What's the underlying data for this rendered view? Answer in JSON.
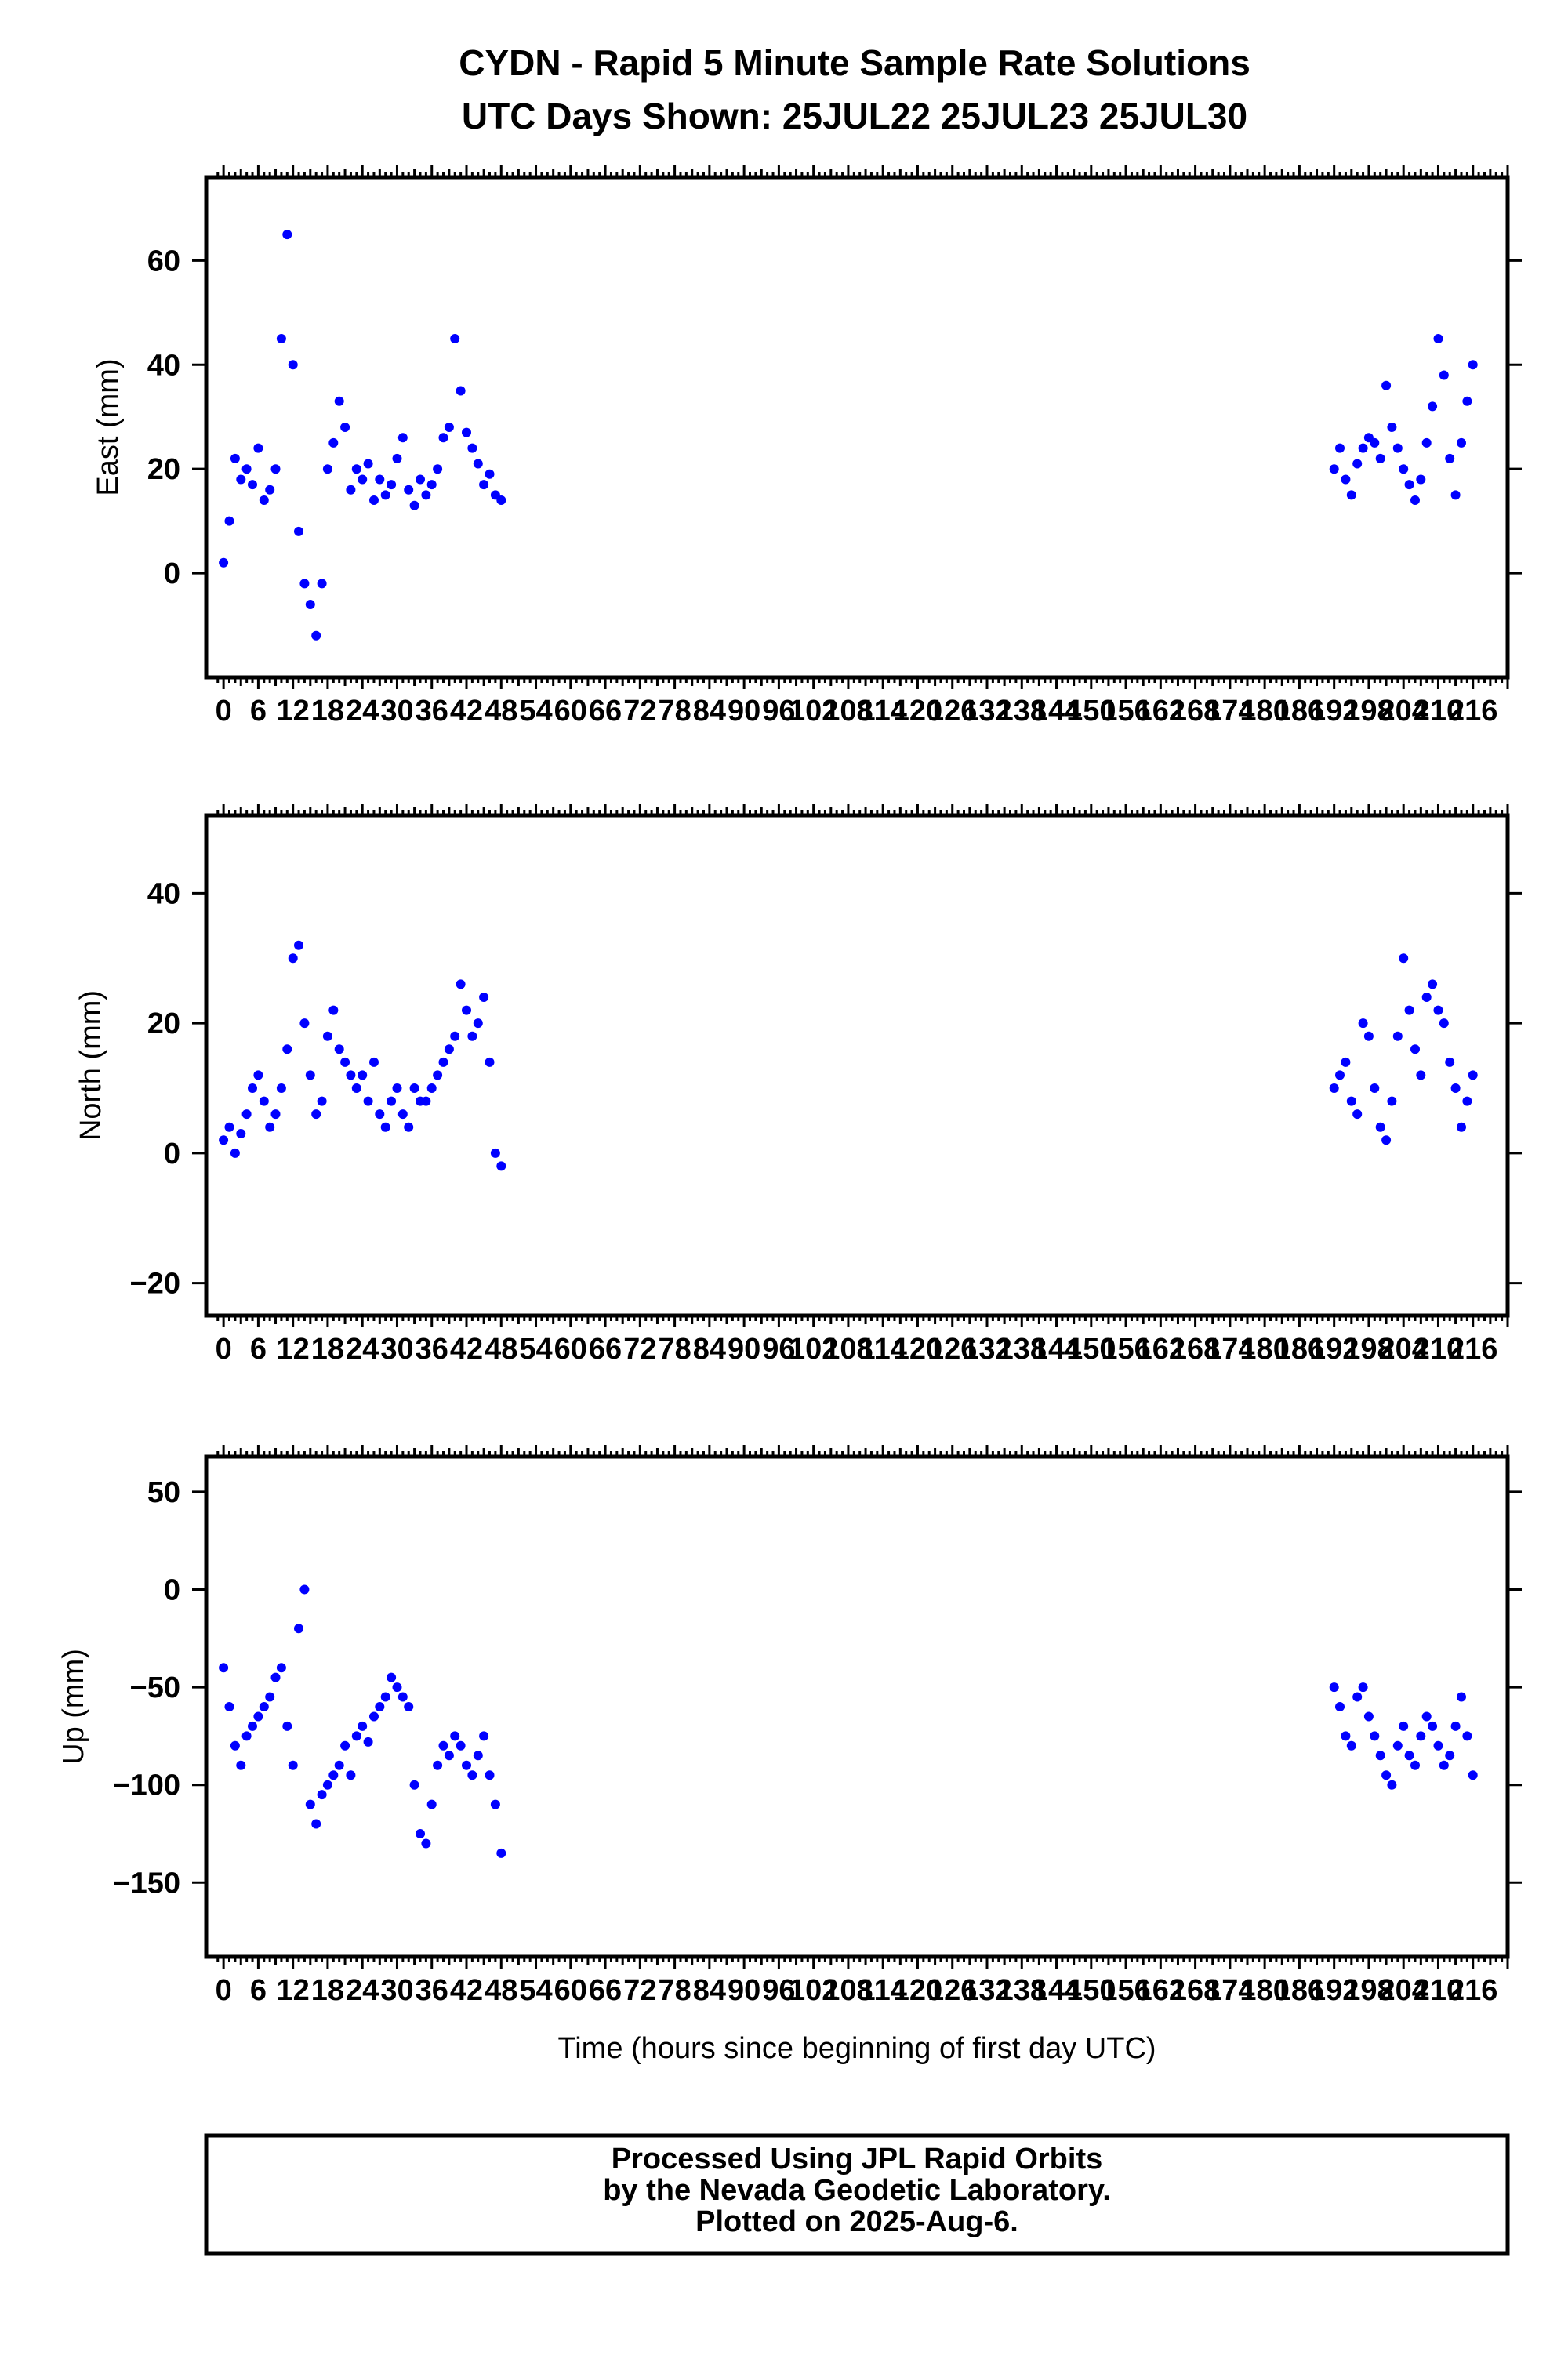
{
  "title": {
    "line1": "CYDN - Rapid 5 Minute Sample Rate Solutions",
    "line2": "UTC Days Shown:  25JUL22 25JUL23 25JUL30"
  },
  "footer": {
    "line1": "Processed Using JPL Rapid Orbits",
    "line2": "by the Nevada Geodetic Laboratory.",
    "line3": "Plotted on 2025-Aug-6."
  },
  "colors": {
    "points": "#0000ff",
    "frame": "#000000",
    "background": "#ffffff"
  },
  "chart_data": [
    {
      "type": "scatter",
      "ylabel": "East (mm)",
      "xlabel": "",
      "xlim": [
        -3,
        222
      ],
      "ylim": [
        -20,
        76
      ],
      "x_ticks": [
        0,
        6,
        12,
        18,
        24,
        30,
        36,
        42,
        48,
        54,
        60,
        66,
        72,
        78,
        84,
        90,
        96,
        102,
        108,
        114,
        120,
        126,
        132,
        138,
        144,
        150,
        156,
        162,
        168,
        174,
        180,
        186,
        192,
        198,
        204,
        210,
        216
      ],
      "x_tick_labels": [
        "0",
        "6",
        "12",
        "18",
        "24",
        "30",
        "36",
        "42",
        "48",
        "54",
        "60",
        "66",
        "72",
        "78",
        "84",
        "90",
        "96",
        "102",
        "108",
        "114",
        "120",
        "126",
        "132",
        "138",
        "144",
        "150",
        "156",
        "162",
        "168",
        "174",
        "180",
        "186",
        "192",
        "198",
        "204",
        "210",
        "216"
      ],
      "y_ticks": [
        0,
        20,
        40,
        60
      ],
      "y_tick_labels": [
        "0",
        "20",
        "40",
        "60"
      ],
      "series": [
        {
          "segments": [
            {
              "x": [
                0,
                1,
                2,
                3,
                4,
                5,
                6,
                7,
                8,
                9,
                10,
                11,
                12,
                13,
                14,
                15,
                16,
                17,
                18,
                19,
                20,
                21,
                22,
                23,
                24,
                25,
                26,
                27,
                28,
                29,
                30,
                31,
                32,
                33,
                34,
                35,
                36,
                37,
                38,
                39,
                40,
                41,
                42,
                43,
                44,
                45,
                46,
                47,
                48
              ],
              "y": [
                2,
                10,
                22,
                18,
                20,
                17,
                24,
                14,
                16,
                20,
                45,
                65,
                40,
                8,
                -2,
                -6,
                -12,
                -2,
                20,
                25,
                33,
                28,
                16,
                20,
                18,
                21,
                14,
                18,
                15,
                17,
                22,
                26,
                16,
                13,
                18,
                15,
                17,
                20,
                26,
                28,
                45,
                35,
                27,
                24,
                21,
                17,
                19,
                15,
                14
              ]
            },
            {
              "x": [
                192,
                193,
                194,
                195,
                196,
                197,
                198,
                199,
                200,
                201,
                202,
                203,
                204,
                205,
                206,
                207,
                208,
                209,
                210,
                211,
                212,
                213,
                214,
                215,
                216
              ],
              "y": [
                20,
                24,
                18,
                15,
                21,
                24,
                26,
                25,
                22,
                36,
                28,
                24,
                20,
                17,
                14,
                18,
                25,
                32,
                45,
                38,
                22,
                15,
                25,
                33,
                40
              ]
            }
          ]
        }
      ]
    },
    {
      "type": "scatter",
      "ylabel": "North (mm)",
      "xlabel": "",
      "xlim": [
        -3,
        222
      ],
      "ylim": [
        -25,
        52
      ],
      "x_ticks": [
        0,
        6,
        12,
        18,
        24,
        30,
        36,
        42,
        48,
        54,
        60,
        66,
        72,
        78,
        84,
        90,
        96,
        102,
        108,
        114,
        120,
        126,
        132,
        138,
        144,
        150,
        156,
        162,
        168,
        174,
        180,
        186,
        192,
        198,
        204,
        210,
        216
      ],
      "x_tick_labels": [
        "0",
        "6",
        "12",
        "18",
        "24",
        "30",
        "36",
        "42",
        "48",
        "54",
        "60",
        "66",
        "72",
        "78",
        "84",
        "90",
        "96",
        "102",
        "108",
        "114",
        "120",
        "126",
        "132",
        "138",
        "144",
        "150",
        "156",
        "162",
        "168",
        "174",
        "180",
        "186",
        "192",
        "198",
        "204",
        "210",
        "216"
      ],
      "y_ticks": [
        -20,
        0,
        20,
        40
      ],
      "y_tick_labels": [
        "−20",
        "0",
        "20",
        "40"
      ],
      "series": [
        {
          "segments": [
            {
              "x": [
                0,
                1,
                2,
                3,
                4,
                5,
                6,
                7,
                8,
                9,
                10,
                11,
                12,
                13,
                14,
                15,
                16,
                17,
                18,
                19,
                20,
                21,
                22,
                23,
                24,
                25,
                26,
                27,
                28,
                29,
                30,
                31,
                32,
                33,
                34,
                35,
                36,
                37,
                38,
                39,
                40,
                41,
                42,
                43,
                44,
                45,
                46,
                47,
                48
              ],
              "y": [
                2,
                4,
                0,
                3,
                6,
                10,
                12,
                8,
                4,
                6,
                10,
                16,
                30,
                32,
                20,
                12,
                6,
                8,
                18,
                22,
                16,
                14,
                12,
                10,
                12,
                8,
                14,
                6,
                4,
                8,
                10,
                6,
                4,
                10,
                8,
                8,
                10,
                12,
                14,
                16,
                18,
                26,
                22,
                18,
                20,
                24,
                14,
                0,
                -2
              ]
            },
            {
              "x": [
                192,
                193,
                194,
                195,
                196,
                197,
                198,
                199,
                200,
                201,
                202,
                203,
                204,
                205,
                206,
                207,
                208,
                209,
                210,
                211,
                212,
                213,
                214,
                215,
                216
              ],
              "y": [
                10,
                12,
                14,
                8,
                6,
                20,
                18,
                10,
                4,
                2,
                8,
                18,
                30,
                22,
                16,
                12,
                24,
                26,
                22,
                20,
                14,
                10,
                4,
                8,
                12
              ]
            }
          ]
        }
      ]
    },
    {
      "type": "scatter",
      "ylabel": "Up (mm)",
      "xlabel": "Time (hours since beginning of first day UTC)",
      "xlim": [
        -3,
        222
      ],
      "ylim": [
        -188,
        68
      ],
      "x_ticks": [
        0,
        6,
        12,
        18,
        24,
        30,
        36,
        42,
        48,
        54,
        60,
        66,
        72,
        78,
        84,
        90,
        96,
        102,
        108,
        114,
        120,
        126,
        132,
        138,
        144,
        150,
        156,
        162,
        168,
        174,
        180,
        186,
        192,
        198,
        204,
        210,
        216
      ],
      "x_tick_labels": [
        "0",
        "6",
        "12",
        "18",
        "24",
        "30",
        "36",
        "42",
        "48",
        "54",
        "60",
        "66",
        "72",
        "78",
        "84",
        "90",
        "96",
        "102",
        "108",
        "114",
        "120",
        "126",
        "132",
        "138",
        "144",
        "150",
        "156",
        "162",
        "168",
        "174",
        "180",
        "186",
        "192",
        "198",
        "204",
        "210",
        "216"
      ],
      "y_ticks": [
        -150,
        -100,
        -50,
        0,
        50
      ],
      "y_tick_labels": [
        "−150",
        "−100",
        "−50",
        "0",
        "50"
      ],
      "series": [
        {
          "segments": [
            {
              "x": [
                0,
                1,
                2,
                3,
                4,
                5,
                6,
                7,
                8,
                9,
                10,
                11,
                12,
                13,
                14,
                15,
                16,
                17,
                18,
                19,
                20,
                21,
                22,
                23,
                24,
                25,
                26,
                27,
                28,
                29,
                30,
                31,
                32,
                33,
                34,
                35,
                36,
                37,
                38,
                39,
                40,
                41,
                42,
                43,
                44,
                45,
                46,
                47,
                48
              ],
              "y": [
                -40,
                -60,
                -80,
                -90,
                -75,
                -70,
                -65,
                -60,
                -55,
                -45,
                -40,
                -70,
                -90,
                -20,
                0,
                -110,
                -120,
                -105,
                -100,
                -95,
                -90,
                -80,
                -95,
                -75,
                -70,
                -78,
                -65,
                -60,
                -55,
                -45,
                -50,
                -55,
                -60,
                -100,
                -125,
                -130,
                -110,
                -90,
                -80,
                -85,
                -75,
                -80,
                -90,
                -95,
                -85,
                -75,
                -95,
                -110,
                -135
              ]
            },
            {
              "x": [
                192,
                193,
                194,
                195,
                196,
                197,
                198,
                199,
                200,
                201,
                202,
                203,
                204,
                205,
                206,
                207,
                208,
                209,
                210,
                211,
                212,
                213,
                214,
                215,
                216
              ],
              "y": [
                -50,
                -60,
                -75,
                -80,
                -55,
                -50,
                -65,
                -75,
                -85,
                -95,
                -100,
                -80,
                -70,
                -85,
                -90,
                -75,
                -65,
                -70,
                -80,
                -90,
                -85,
                -70,
                -55,
                -75,
                -95
              ]
            }
          ]
        }
      ]
    }
  ]
}
